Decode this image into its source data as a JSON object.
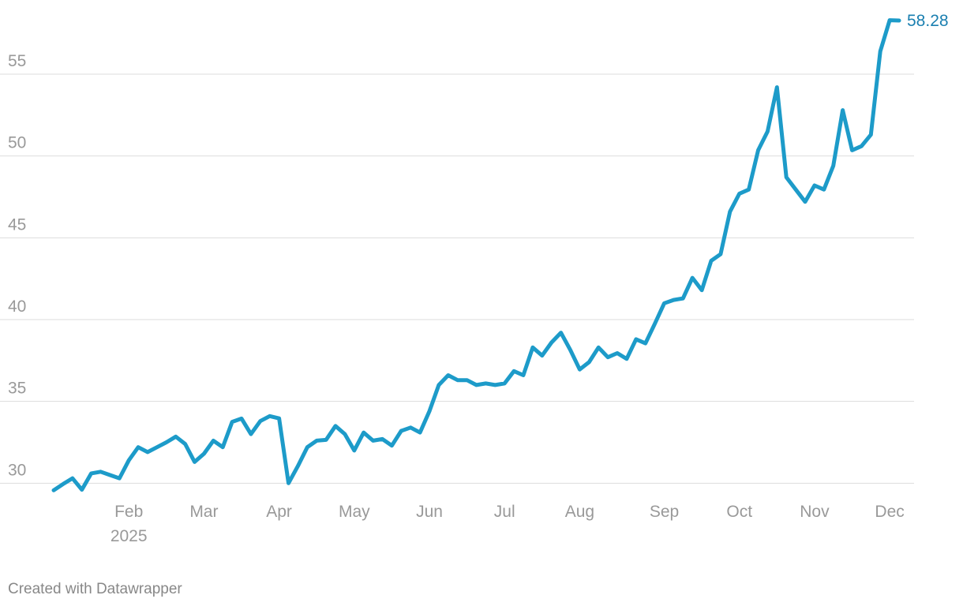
{
  "chart_data": {
    "type": "line",
    "categories": [
      null,
      null,
      null,
      null,
      null,
      null,
      null,
      null,
      "Feb",
      null,
      null,
      null,
      null,
      null,
      null,
      null,
      "Mar",
      null,
      null,
      null,
      null,
      null,
      null,
      null,
      "Apr",
      null,
      null,
      null,
      null,
      null,
      null,
      null,
      "May",
      null,
      null,
      null,
      null,
      null,
      null,
      null,
      "Jun",
      null,
      null,
      null,
      null,
      null,
      null,
      null,
      "Jul",
      null,
      null,
      null,
      null,
      null,
      null,
      null,
      "Aug",
      null,
      null,
      null,
      null,
      null,
      null,
      null,
      null,
      "Sep",
      null,
      null,
      null,
      null,
      null,
      null,
      null,
      "Oct",
      null,
      null,
      null,
      null,
      null,
      null,
      null,
      "Nov",
      null,
      null,
      null,
      null,
      null,
      null,
      null,
      "Dec",
      null
    ],
    "x_sublabel": "2025",
    "series": [
      {
        "color": "#1d9bc9",
        "values": [
          29.57,
          29.95,
          30.3,
          29.6,
          30.6,
          30.7,
          30.5,
          30.3,
          31.4,
          32.2,
          31.9,
          32.2,
          32.5,
          32.85,
          32.4,
          31.3,
          31.8,
          32.6,
          32.2,
          33.75,
          33.95,
          33.0,
          33.8,
          34.1,
          33.96,
          30.0,
          31.05,
          32.2,
          32.6,
          32.65,
          33.5,
          33.0,
          32.0,
          33.1,
          32.6,
          32.7,
          32.3,
          33.2,
          33.4,
          33.1,
          34.4,
          36.0,
          36.6,
          36.3,
          36.3,
          36.0,
          36.1,
          36.0,
          36.1,
          36.85,
          36.6,
          38.3,
          37.8,
          38.6,
          39.2,
          38.15,
          36.95,
          37.4,
          38.3,
          37.7,
          37.95,
          37.6,
          38.8,
          38.55,
          39.75,
          41.0,
          41.2,
          41.3,
          42.55,
          41.8,
          43.6,
          44.0,
          46.6,
          47.7,
          47.95,
          50.35,
          51.5,
          54.2,
          48.7,
          47.95,
          47.2,
          48.2,
          47.95,
          49.4,
          52.8,
          50.35,
          50.6,
          51.3,
          56.4,
          58.3,
          58.28
        ]
      }
    ],
    "ylim": [
      29.1,
      59.1
    ],
    "yticks": [
      30,
      35,
      40,
      45,
      50,
      55
    ],
    "grid": true,
    "footer": "Created with Datawrapper"
  }
}
